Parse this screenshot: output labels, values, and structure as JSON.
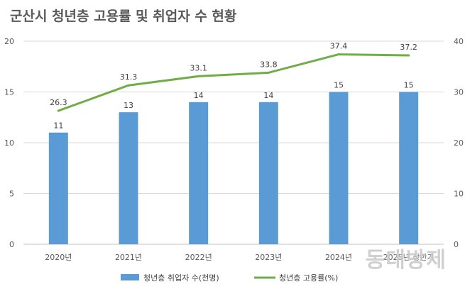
{
  "chart_data": {
    "title": "군산시 청년층 고용률 및 취업자 수 현황",
    "type": "bar+line",
    "categories": [
      "2020년",
      "2021년",
      "2022년",
      "2023년",
      "2024년",
      "2025년 상반기"
    ],
    "series": [
      {
        "name": "청년층 취업자 수(천명)",
        "type": "bar",
        "axis": "left",
        "color": "#5B9BD5",
        "values": [
          11,
          13,
          14,
          14,
          15,
          15
        ],
        "labels": [
          "11",
          "13",
          "14",
          "14",
          "15",
          "15"
        ]
      },
      {
        "name": "청년층 고용률(%)",
        "type": "line",
        "axis": "right",
        "color": "#70AD47",
        "values": [
          26.3,
          31.3,
          33.1,
          33.8,
          37.4,
          37.2
        ],
        "labels": [
          "26.3",
          "31.3",
          "33.1",
          "33.8",
          "37.4",
          "37.2"
        ]
      }
    ],
    "y_left": {
      "min": 0,
      "max": 20,
      "ticks": [
        "0",
        "5",
        "10",
        "15",
        "20"
      ]
    },
    "y_right": {
      "min": 0,
      "max": 40,
      "ticks": [
        "0",
        "10",
        "20",
        "30",
        "40"
      ]
    },
    "grid": true,
    "legend_position": "bottom"
  },
  "watermark": "동대방제"
}
